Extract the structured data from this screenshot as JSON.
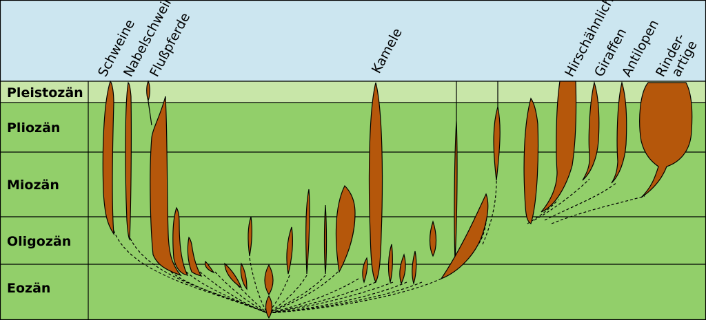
{
  "epochs": [
    "Pleistozän",
    "Pliozän",
    "Miozän",
    "Oligozän",
    "Eozän"
  ],
  "taxa": {
    "schweine": "Schweine",
    "nabelschweine": "Nabelschweine",
    "flusspferde": "Flußpferde",
    "kamele": "Kamele",
    "hirschaehnliche": "Hirschähnliche",
    "giraffen": "Giraffen",
    "antilopen": "Antilopen",
    "rinder_line1": "Rinder-",
    "rinder_line2": "artige"
  },
  "colors": {
    "sky": "#cce6f0",
    "pleistocene": "#c8e6a8",
    "older_epochs": "#92cf6a",
    "lineage": "#b5570b"
  }
}
